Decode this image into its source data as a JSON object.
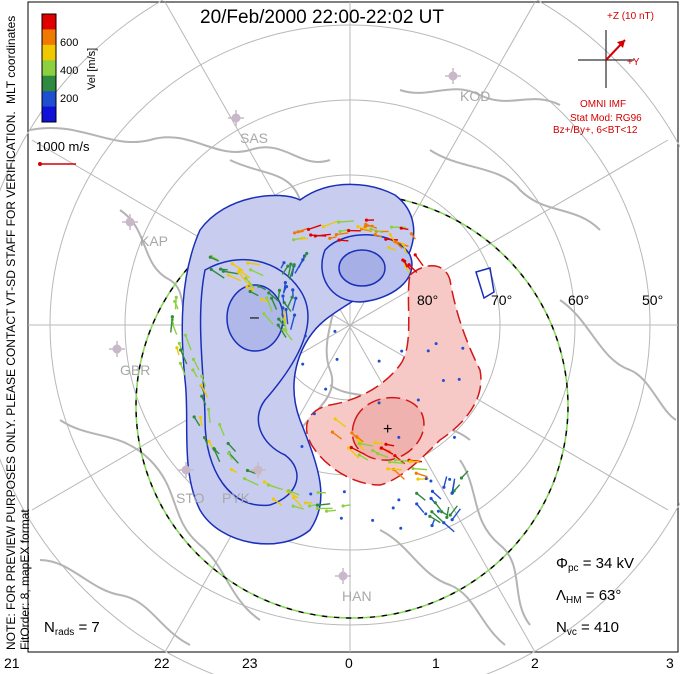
{
  "title": "20/Feb/2000 22:00-22:02 UT",
  "left_notes": {
    "coords": "MLT coordinates",
    "preview": "NOTE: FOR PREVIEW PURPOSES ONLY. PLEASE CONTACT VT-SD STAFF FOR VERIFICATION.",
    "fit": "FitOrder: 8, mapEX format"
  },
  "colorbar": {
    "label": "Vel [m/s]",
    "ticks": [
      "600",
      "400",
      "200"
    ],
    "colors": [
      "#e00000",
      "#f07a00",
      "#f0c800",
      "#8cd040",
      "#2e8a3e",
      "#1f4fd0",
      "#1010d8"
    ]
  },
  "reference_vector": {
    "label": "1000 m/s",
    "color": "#d40000"
  },
  "imf": {
    "z_label": "+Z (10 nT)",
    "y_label": "+Y",
    "source": "OMNI IMF",
    "model": "Stat Mod: RG96",
    "condition": "Bz+/By+, 6<BT<12",
    "color": "#d40000"
  },
  "latitude_labels": [
    "80°",
    "70°",
    "60°",
    "50°"
  ],
  "sites": [
    "KOD",
    "SAS",
    "KAP",
    "GBR",
    "STO",
    "PYK",
    "HAN"
  ],
  "mlt_labels": [
    "21",
    "22",
    "23",
    "0",
    "1",
    "2",
    "3"
  ],
  "stats": {
    "phi_symbol": "Φ",
    "phi_sub": "pc",
    "phi_value": "= 34 kV",
    "lambda_symbol": "Λ",
    "lambda_sub": "HM",
    "lambda_value": "= 63°",
    "nvc_symbol": "N",
    "nvc_sub": "vc",
    "nvc_value": "= 410",
    "nrads_symbol": "N",
    "nrads_sub": "rads",
    "nrads_value": "= 7"
  },
  "cells": {
    "negative_color": "#1a2fb8",
    "negative_fill": "#c8cdf0",
    "positive_color": "#d01818",
    "positive_fill": "#f6c9c6"
  }
}
